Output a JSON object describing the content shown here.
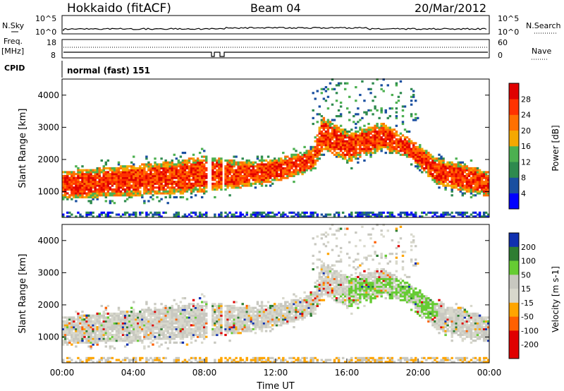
{
  "header": {
    "station": "Hokkaido (fitACF)",
    "beam": "Beam 04",
    "date": "20/Mar/2012",
    "cpid_label": "CPID",
    "cpid_value": "normal (fast) 151"
  },
  "noise_panel": {
    "left_label": "N.Sky",
    "right_label": "N.Search",
    "left_ticks": [
      "10^5",
      "10^0"
    ],
    "right_ticks": [
      "10^5",
      "10^0"
    ]
  },
  "freq_panel": {
    "left_label_1": "Freq.",
    "left_label_2": "[MHz]",
    "right_label": "Nave",
    "left_ticks": [
      "18",
      "8"
    ],
    "right_ticks": [
      "60",
      "0"
    ]
  },
  "colors": {
    "power": [
      "#0000ff",
      "#1a4fa0",
      "#2e8a4e",
      "#4cb050",
      "#f5a800",
      "#ff7000",
      "#ff3300",
      "#e00000"
    ],
    "velocity": [
      "#1030b0",
      "#2e7d32",
      "#66cc33",
      "#c8c8c0",
      "#d8d8cc",
      "#ffa500",
      "#ff6000",
      "#e00000"
    ]
  },
  "chart_data": [
    {
      "type": "heatmap",
      "name": "power",
      "ylabel": "Slant Range [km]",
      "ylim": [
        200,
        4500
      ],
      "xlim": [
        0,
        24
      ],
      "yticks": [
        "1000",
        "2000",
        "3000",
        "4000"
      ],
      "ytick_values": [
        1000,
        2000,
        3000,
        4000
      ],
      "colorbar_label": "Power [dB]",
      "colorbar_ticks": [
        "4",
        "8",
        "12",
        "16",
        "20",
        "24",
        "28"
      ],
      "bands": [
        {
          "t": 0.0,
          "lo": 750,
          "hi": 1600
        },
        {
          "t": 2.0,
          "lo": 800,
          "hi": 1700
        },
        {
          "t": 4.0,
          "lo": 850,
          "hi": 1800
        },
        {
          "t": 6.0,
          "lo": 900,
          "hi": 1900
        },
        {
          "t": 8.0,
          "lo": 950,
          "hi": 2100
        },
        {
          "t": 10.0,
          "lo": 1100,
          "hi": 1900
        },
        {
          "t": 12.0,
          "lo": 1300,
          "hi": 2000
        },
        {
          "t": 14.0,
          "lo": 1600,
          "hi": 2300
        },
        {
          "t": 14.6,
          "lo": 2300,
          "hi": 3300
        },
        {
          "t": 16.0,
          "lo": 1900,
          "hi": 2800
        },
        {
          "t": 18.0,
          "lo": 2300,
          "hi": 3100
        },
        {
          "t": 19.5,
          "lo": 2000,
          "hi": 2600
        },
        {
          "t": 21.0,
          "lo": 1200,
          "hi": 2000
        },
        {
          "t": 24.0,
          "lo": 800,
          "hi": 1600
        }
      ]
    },
    {
      "type": "heatmap",
      "name": "velocity",
      "ylabel": "Slant Range [km]",
      "ylim": [
        200,
        4500
      ],
      "xlim": [
        0,
        24
      ],
      "yticks": [
        "1000",
        "2000",
        "3000",
        "4000"
      ],
      "ytick_values": [
        1000,
        2000,
        3000,
        4000
      ],
      "colorbar_label": "Velocity [m s-1]",
      "colorbar_ticks": [
        "200",
        "100",
        "50",
        "15",
        "-15",
        "-50",
        "-100",
        "-200"
      ],
      "xlabel": "Time UT",
      "xticks": [
        "00:00",
        "04:00",
        "08:00",
        "12:00",
        "16:00",
        "20:00",
        "00:00"
      ],
      "xtick_values": [
        0,
        4,
        8,
        12,
        16,
        20,
        24
      ]
    }
  ]
}
